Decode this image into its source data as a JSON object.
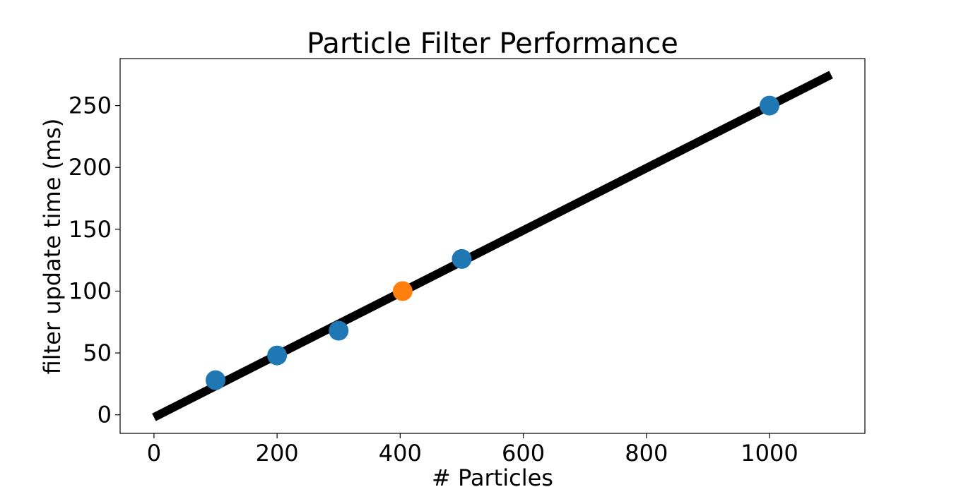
{
  "chart_data": {
    "type": "scatter",
    "title": "Particle Filter Performance",
    "xlabel": "# Particles",
    "ylabel": "filter update time (ms)",
    "xlim": [
      -55,
      1155
    ],
    "ylim": [
      -15,
      288
    ],
    "xticks": [
      0,
      200,
      400,
      600,
      800,
      1000
    ],
    "yticks": [
      0,
      50,
      100,
      150,
      200,
      250
    ],
    "grid": false,
    "series": [
      {
        "type": "line",
        "color": "#000000",
        "x": [
          0,
          1100
        ],
        "y": [
          -2,
          275
        ]
      },
      {
        "type": "scatter",
        "color": "#1f77b4",
        "x": [
          100,
          200,
          300,
          500,
          1000
        ],
        "y": [
          28,
          48,
          68,
          126,
          250
        ]
      },
      {
        "type": "scatter",
        "color": "#ff7f0e",
        "x": [
          404
        ],
        "y": [
          100
        ]
      }
    ]
  }
}
